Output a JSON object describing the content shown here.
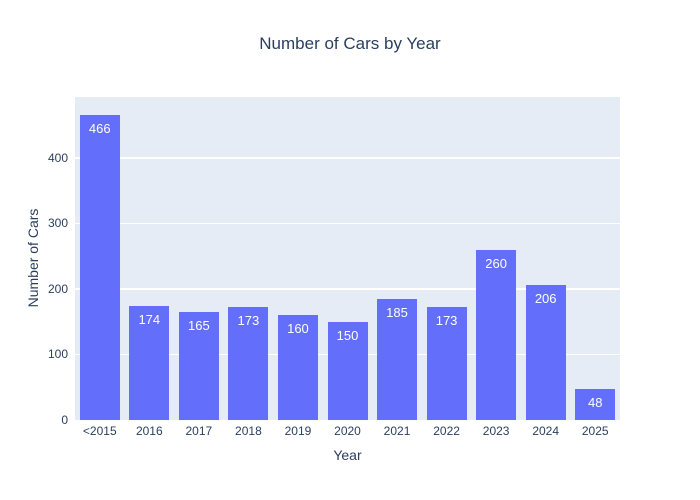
{
  "chart_data": {
    "type": "bar",
    "title": "Number of Cars by Year",
    "xlabel": "Year",
    "ylabel": "Number of Cars",
    "categories": [
      "<2015",
      "2016",
      "2017",
      "2018",
      "2019",
      "2020",
      "2021",
      "2022",
      "2023",
      "2024",
      "2025"
    ],
    "values": [
      466,
      174,
      165,
      173,
      160,
      150,
      185,
      173,
      260,
      206,
      48
    ],
    "bar_labels": [
      "466",
      "174",
      "165",
      "173",
      "160",
      "150",
      "185",
      "173",
      "260",
      "206",
      "48"
    ],
    "ylim": [
      0,
      493
    ],
    "yticks": [
      0,
      100,
      200,
      300,
      400
    ],
    "grid": true,
    "legend": "none",
    "colors": {
      "bar": "#636EFA",
      "bar_label_text": "#ffffff",
      "plot_background": "#E5ECF6",
      "gridline": "#ffffff",
      "text": "#2a3f5f",
      "paper_background": "#ffffff"
    }
  }
}
